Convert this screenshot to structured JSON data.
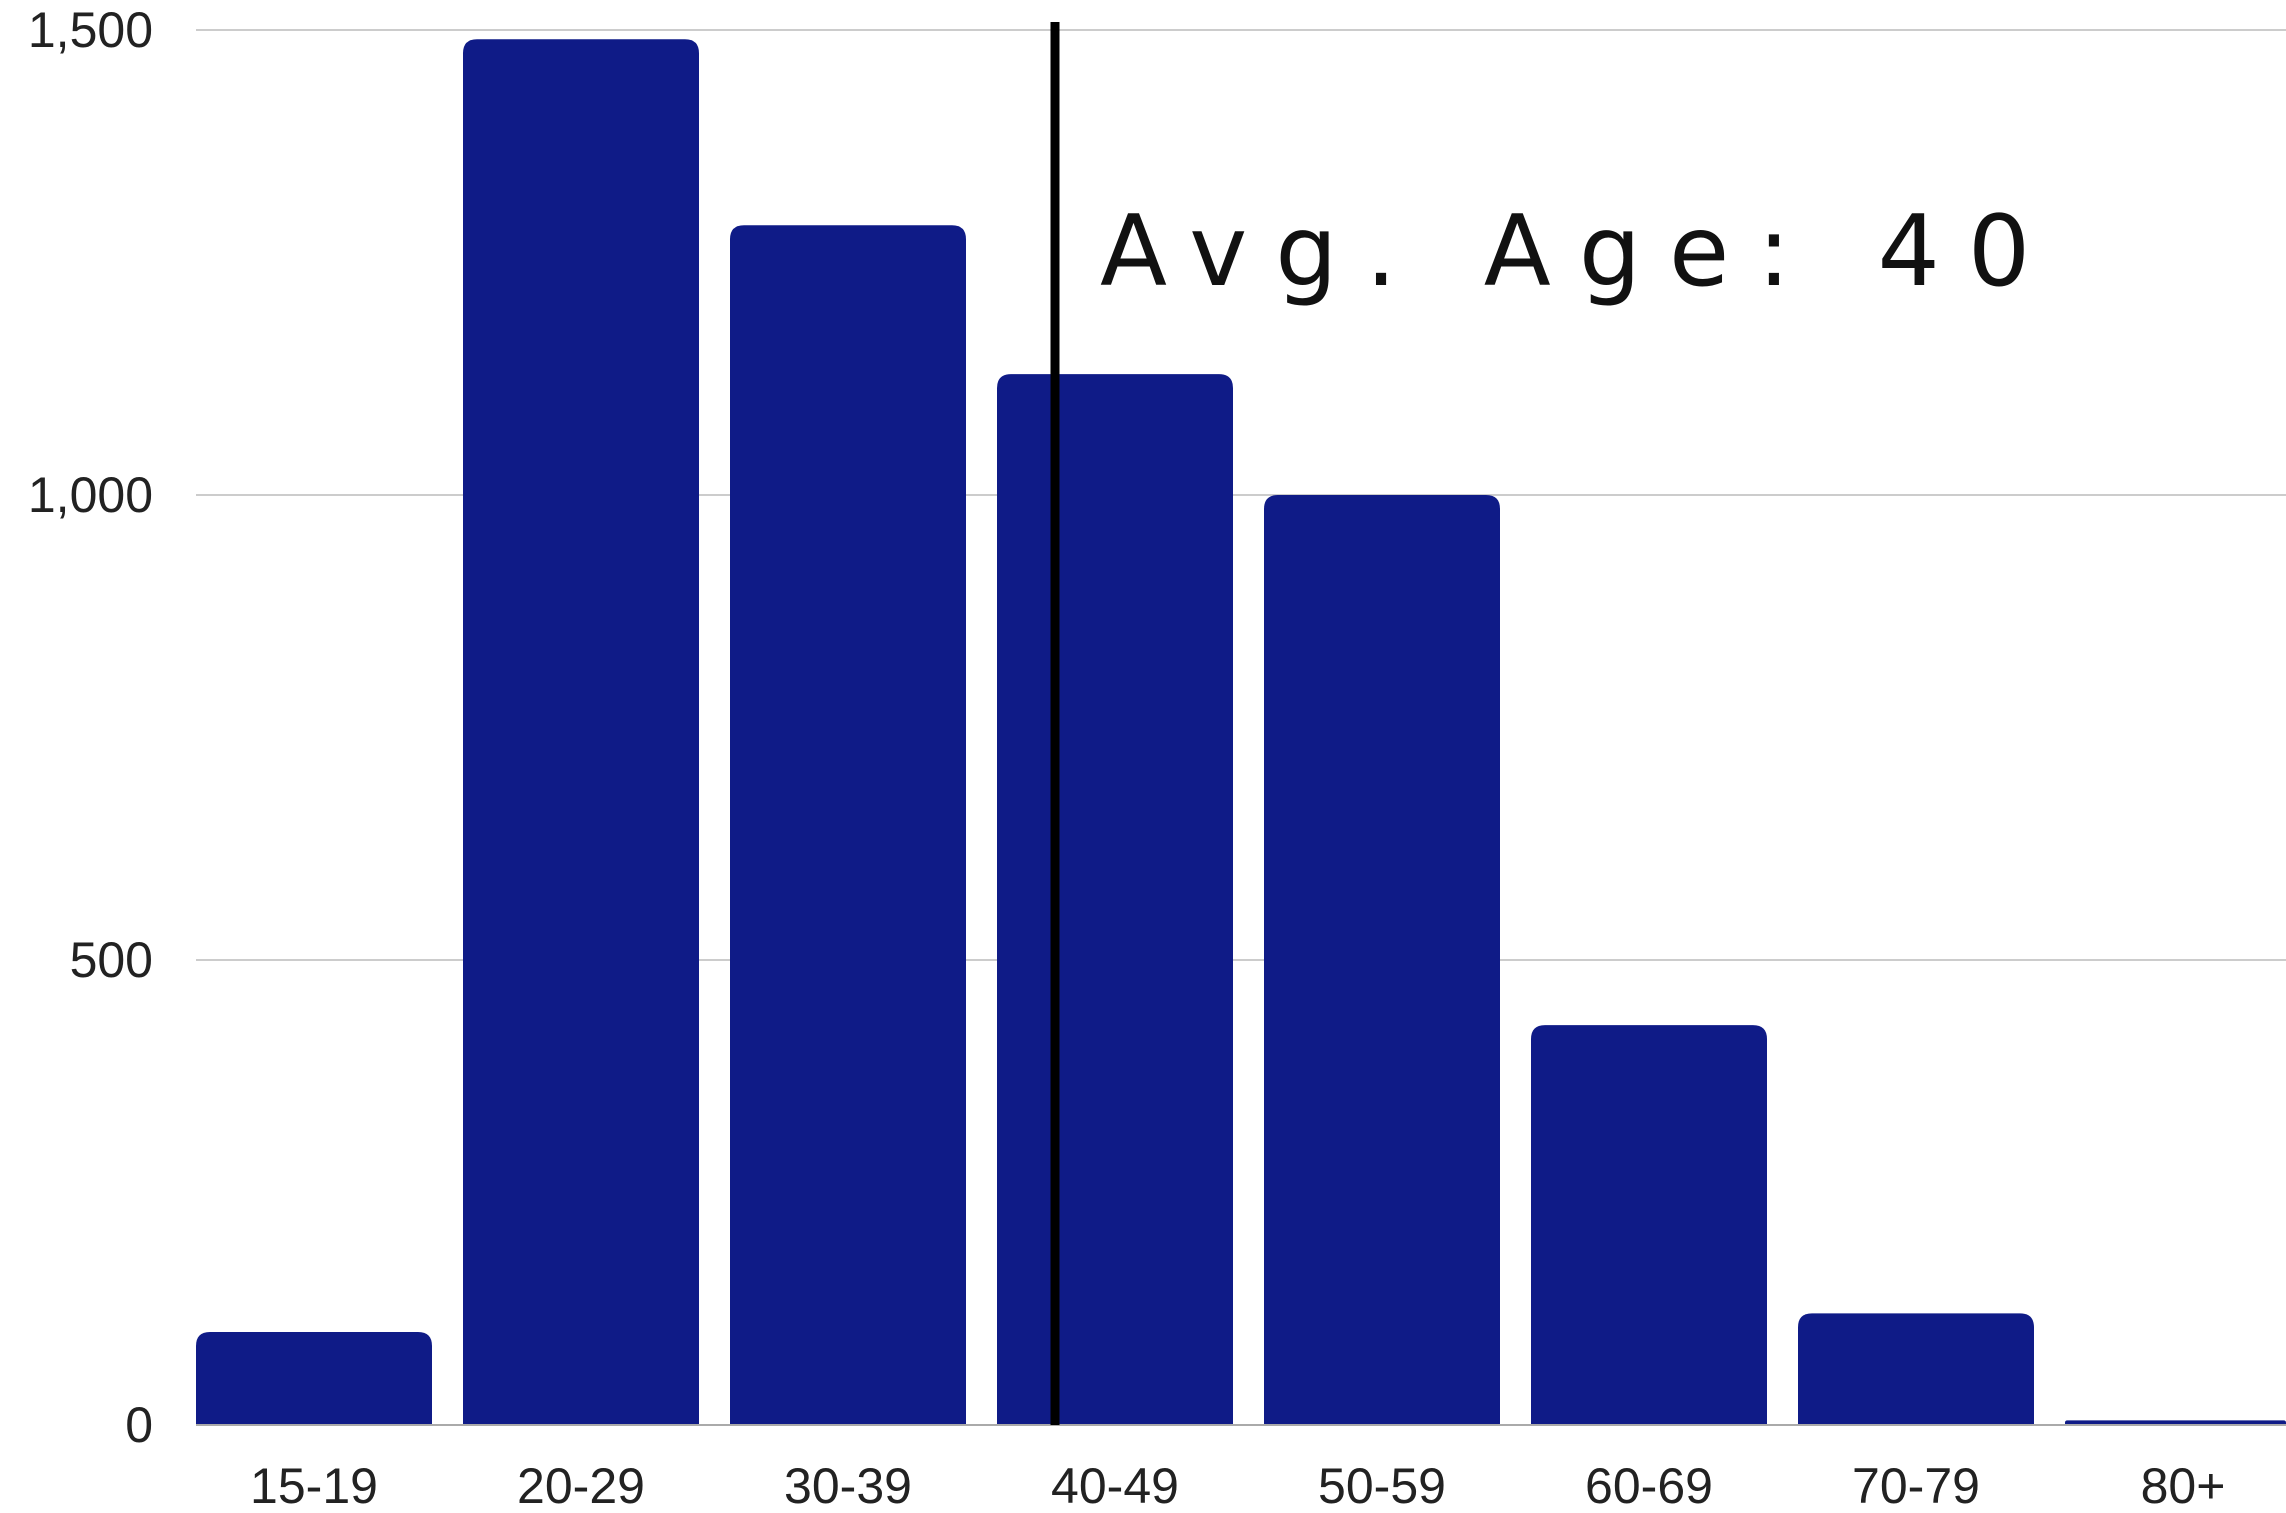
{
  "chart_data": {
    "type": "bar",
    "title": "",
    "xlabel": "",
    "ylabel": "",
    "categories": [
      "15-19",
      "20-29",
      "30-39",
      "40-49",
      "50-59",
      "60-69",
      "70-79",
      "80+"
    ],
    "values": [
      100,
      1490,
      1290,
      1130,
      1000,
      430,
      120,
      5
    ],
    "ylim": [
      0,
      1500
    ],
    "yticks": [
      0,
      500,
      1000,
      1500
    ],
    "ytick_labels": [
      "0",
      "500",
      "1,000",
      "1,500"
    ],
    "grid": true,
    "bar_color": "#0F1B87",
    "reference_line": {
      "x": 40,
      "label": "Avg. Age: 40",
      "color": "#000000"
    }
  }
}
